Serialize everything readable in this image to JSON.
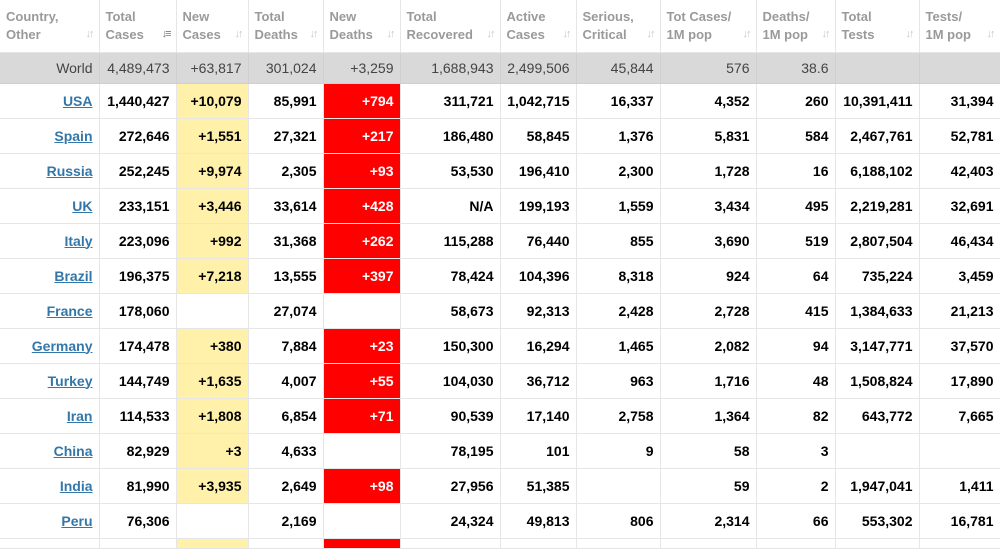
{
  "columns": [
    {
      "l1": "Country,",
      "l2": "Other"
    },
    {
      "l1": "Total",
      "l2": "Cases",
      "sorted": true
    },
    {
      "l1": "New",
      "l2": "Cases"
    },
    {
      "l1": "Total",
      "l2": "Deaths"
    },
    {
      "l1": "New",
      "l2": "Deaths"
    },
    {
      "l1": "Total",
      "l2": "Recovered"
    },
    {
      "l1": "Active",
      "l2": "Cases"
    },
    {
      "l1": "Serious,",
      "l2": "Critical"
    },
    {
      "l1": "Tot Cases/",
      "l2": "1M pop"
    },
    {
      "l1": "Deaths/",
      "l2": "1M pop"
    },
    {
      "l1": "Total",
      "l2": "Tests"
    },
    {
      "l1": "Tests/",
      "l2": "1M pop"
    }
  ],
  "world": {
    "country": "World",
    "total_cases": "4,489,473",
    "new_cases": "+63,817",
    "total_deaths": "301,024",
    "new_deaths": "+3,259",
    "total_recovered": "1,688,943",
    "active_cases": "2,499,506",
    "serious": "45,844",
    "cases_per_1m": "576",
    "deaths_per_1m": "38.6",
    "total_tests": "",
    "tests_per_1m": ""
  },
  "rows": [
    {
      "country": "USA",
      "total_cases": "1,440,427",
      "new_cases": "+10,079",
      "total_deaths": "85,991",
      "new_deaths": "+794",
      "total_recovered": "311,721",
      "active_cases": "1,042,715",
      "serious": "16,337",
      "cases_per_1m": "4,352",
      "deaths_per_1m": "260",
      "total_tests": "10,391,411",
      "tests_per_1m": "31,394"
    },
    {
      "country": "Spain",
      "total_cases": "272,646",
      "new_cases": "+1,551",
      "total_deaths": "27,321",
      "new_deaths": "+217",
      "total_recovered": "186,480",
      "active_cases": "58,845",
      "serious": "1,376",
      "cases_per_1m": "5,831",
      "deaths_per_1m": "584",
      "total_tests": "2,467,761",
      "tests_per_1m": "52,781"
    },
    {
      "country": "Russia",
      "total_cases": "252,245",
      "new_cases": "+9,974",
      "total_deaths": "2,305",
      "new_deaths": "+93",
      "total_recovered": "53,530",
      "active_cases": "196,410",
      "serious": "2,300",
      "cases_per_1m": "1,728",
      "deaths_per_1m": "16",
      "total_tests": "6,188,102",
      "tests_per_1m": "42,403"
    },
    {
      "country": "UK",
      "total_cases": "233,151",
      "new_cases": "+3,446",
      "total_deaths": "33,614",
      "new_deaths": "+428",
      "total_recovered": "N/A",
      "active_cases": "199,193",
      "serious": "1,559",
      "cases_per_1m": "3,434",
      "deaths_per_1m": "495",
      "total_tests": "2,219,281",
      "tests_per_1m": "32,691"
    },
    {
      "country": "Italy",
      "total_cases": "223,096",
      "new_cases": "+992",
      "total_deaths": "31,368",
      "new_deaths": "+262",
      "total_recovered": "115,288",
      "active_cases": "76,440",
      "serious": "855",
      "cases_per_1m": "3,690",
      "deaths_per_1m": "519",
      "total_tests": "2,807,504",
      "tests_per_1m": "46,434"
    },
    {
      "country": "Brazil",
      "total_cases": "196,375",
      "new_cases": "+7,218",
      "total_deaths": "13,555",
      "new_deaths": "+397",
      "total_recovered": "78,424",
      "active_cases": "104,396",
      "serious": "8,318",
      "cases_per_1m": "924",
      "deaths_per_1m": "64",
      "total_tests": "735,224",
      "tests_per_1m": "3,459"
    },
    {
      "country": "France",
      "total_cases": "178,060",
      "new_cases": "",
      "total_deaths": "27,074",
      "new_deaths": "",
      "total_recovered": "58,673",
      "active_cases": "92,313",
      "serious": "2,428",
      "cases_per_1m": "2,728",
      "deaths_per_1m": "415",
      "total_tests": "1,384,633",
      "tests_per_1m": "21,213"
    },
    {
      "country": "Germany",
      "total_cases": "174,478",
      "new_cases": "+380",
      "total_deaths": "7,884",
      "new_deaths": "+23",
      "total_recovered": "150,300",
      "active_cases": "16,294",
      "serious": "1,465",
      "cases_per_1m": "2,082",
      "deaths_per_1m": "94",
      "total_tests": "3,147,771",
      "tests_per_1m": "37,570"
    },
    {
      "country": "Turkey",
      "total_cases": "144,749",
      "new_cases": "+1,635",
      "total_deaths": "4,007",
      "new_deaths": "+55",
      "total_recovered": "104,030",
      "active_cases": "36,712",
      "serious": "963",
      "cases_per_1m": "1,716",
      "deaths_per_1m": "48",
      "total_tests": "1,508,824",
      "tests_per_1m": "17,890"
    },
    {
      "country": "Iran",
      "total_cases": "114,533",
      "new_cases": "+1,808",
      "total_deaths": "6,854",
      "new_deaths": "+71",
      "total_recovered": "90,539",
      "active_cases": "17,140",
      "serious": "2,758",
      "cases_per_1m": "1,364",
      "deaths_per_1m": "82",
      "total_tests": "643,772",
      "tests_per_1m": "7,665"
    },
    {
      "country": "China",
      "total_cases": "82,929",
      "new_cases": "+3",
      "total_deaths": "4,633",
      "new_deaths": "",
      "total_recovered": "78,195",
      "active_cases": "101",
      "serious": "9",
      "cases_per_1m": "58",
      "deaths_per_1m": "3",
      "total_tests": "",
      "tests_per_1m": ""
    },
    {
      "country": "India",
      "total_cases": "81,990",
      "new_cases": "+3,935",
      "total_deaths": "2,649",
      "new_deaths": "+98",
      "total_recovered": "27,956",
      "active_cases": "51,385",
      "serious": "",
      "cases_per_1m": "59",
      "deaths_per_1m": "2",
      "total_tests": "1,947,041",
      "tests_per_1m": "1,411"
    },
    {
      "country": "Peru",
      "total_cases": "76,306",
      "new_cases": "",
      "total_deaths": "2,169",
      "new_deaths": "",
      "total_recovered": "24,324",
      "active_cases": "49,813",
      "serious": "806",
      "cases_per_1m": "2,314",
      "deaths_per_1m": "66",
      "total_tests": "553,302",
      "tests_per_1m": "16,781"
    }
  ],
  "colors": {
    "new_cases_bg": "#fff1a9",
    "new_deaths_bg": "#ff0000",
    "link": "#3377aa",
    "world_bg": "#d9d9d9",
    "header_text": "#9a9a9a"
  },
  "icons": {
    "sort": "sort-arrows-icon",
    "sorted": "sort-desc-icon"
  }
}
